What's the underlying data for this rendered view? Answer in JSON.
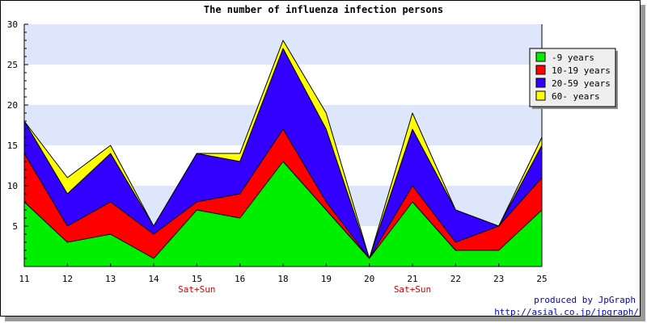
{
  "chart_data": {
    "type": "area",
    "stacked": true,
    "title": "The number of influenza infection persons",
    "x": [
      "11",
      "12",
      "13",
      "14",
      "15",
      "16",
      "18",
      "19",
      "20",
      "21",
      "22",
      "23",
      "25"
    ],
    "x_notes": [
      {
        "x": "15",
        "text": "Sat+Sun"
      },
      {
        "x": "21",
        "text": "Sat+Sun"
      }
    ],
    "ylim": [
      0,
      30
    ],
    "yticks": [
      5,
      10,
      15,
      20,
      25,
      30
    ],
    "grid": "horizontal bands",
    "legend_position": "right",
    "series": [
      {
        "name": "-9 years",
        "color": "#00ee00",
        "values": [
          8,
          3,
          4,
          1,
          7,
          6,
          13,
          7,
          1,
          8,
          2,
          2,
          7
        ]
      },
      {
        "name": "10-19 years",
        "color": "#ff0000",
        "values": [
          6,
          2,
          4,
          3,
          1,
          3,
          4,
          1,
          0,
          2,
          1,
          3,
          4
        ]
      },
      {
        "name": "20-59 years",
        "color": "#3300ff",
        "values": [
          4,
          4,
          6,
          1,
          6,
          4,
          10,
          9,
          0,
          7,
          4,
          0,
          4
        ]
      },
      {
        "name": "60- years",
        "color": "#ffff00",
        "values": [
          0,
          2,
          1,
          0,
          0,
          1,
          1,
          2,
          0,
          2,
          0,
          0,
          1
        ]
      }
    ]
  },
  "footer": {
    "credit_line1": "produced by JpGraph",
    "credit_line2": "http://asial.co.jp/jpgraph/"
  }
}
